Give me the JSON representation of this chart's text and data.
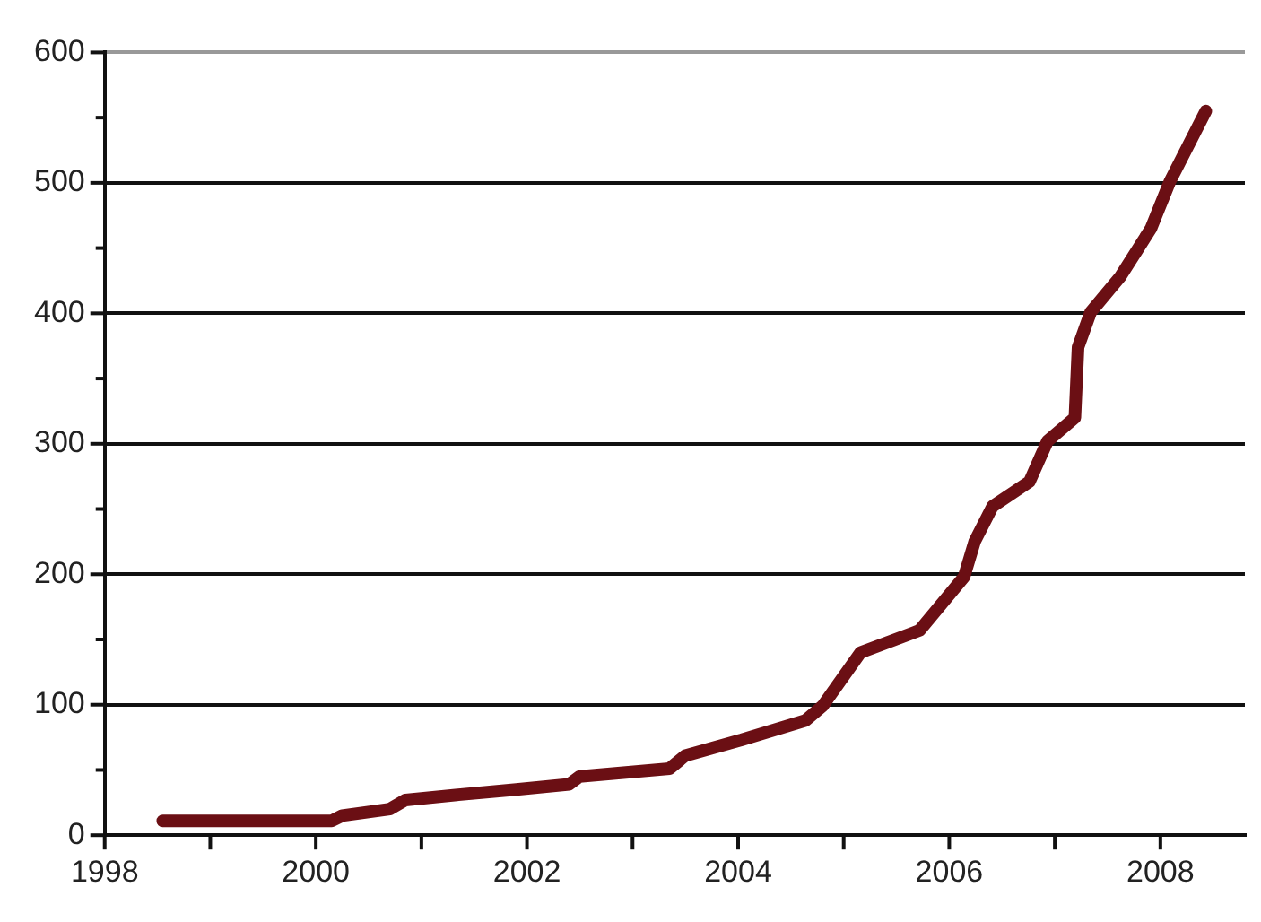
{
  "chart_data": {
    "type": "line",
    "x": [
      1998.55,
      2000.15,
      2000.25,
      2000.7,
      2000.85,
      2001.35,
      2001.9,
      2002.4,
      2002.5,
      2003.35,
      2003.5,
      2004.03,
      2004.64,
      2004.8,
      2005.16,
      2005.72,
      2006.14,
      2006.24,
      2006.41,
      2006.76,
      2006.93,
      2007.19,
      2007.22,
      2007.34,
      2007.62,
      2007.91,
      2008.09,
      2008.43
    ],
    "series": [
      {
        "color": "#6b0f14",
        "values": [
          11,
          11,
          15,
          20,
          27,
          31,
          35,
          39,
          45,
          51,
          61,
          73,
          88,
          99,
          140,
          157,
          198,
          225,
          252,
          271,
          302,
          320,
          374,
          401,
          428,
          465,
          501,
          555
        ]
      }
    ],
    "xlim": [
      1998,
      2008.8
    ],
    "xticks": [
      1998,
      {
        "value": 1999,
        "label": null
      },
      2000,
      {
        "value": 2001,
        "label": null
      },
      2002,
      {
        "value": 2003,
        "label": null
      },
      2004,
      {
        "value": 2005,
        "label": null
      },
      2006,
      {
        "value": 2007,
        "label": null
      },
      2008
    ],
    "ylim": [
      0,
      600
    ],
    "yticks": [
      0,
      {
        "value": 50,
        "label": null
      },
      100,
      {
        "value": 150,
        "label": null
      },
      200,
      {
        "value": 250,
        "label": null
      },
      300,
      {
        "value": 350,
        "label": null
      },
      400,
      {
        "value": 450,
        "label": null
      },
      500,
      {
        "value": 550,
        "label": null
      },
      600
    ],
    "grid": "y",
    "legend": false,
    "marker": "none",
    "line_style": "solid"
  }
}
